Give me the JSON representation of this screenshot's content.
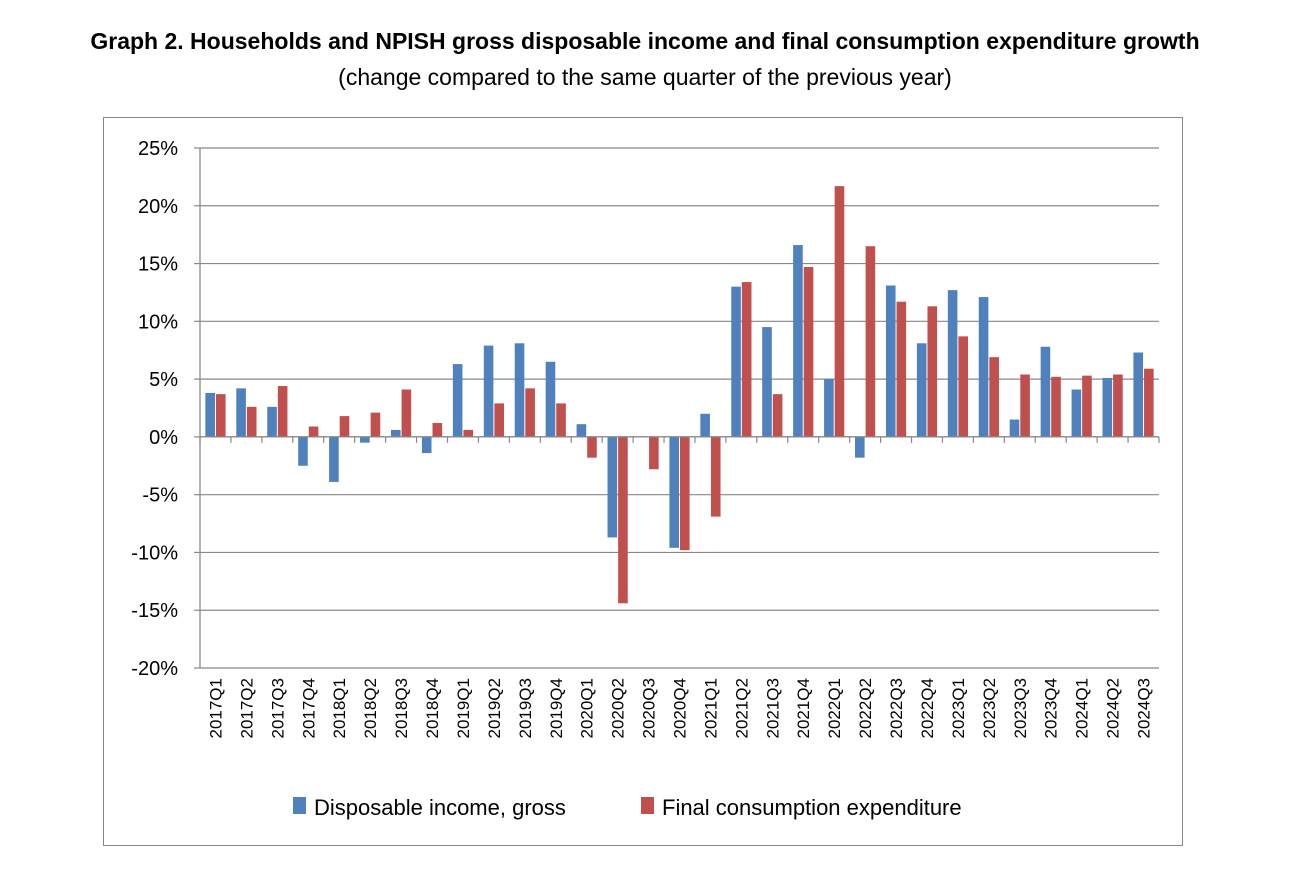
{
  "title": "Graph 2. Households and NPISH gross disposable income and final consumption expenditure growth",
  "subtitle": "(change compared to the same quarter of the previous year)",
  "chart_data": {
    "type": "bar",
    "categories": [
      "2017Q1",
      "2017Q2",
      "2017Q3",
      "2017Q4",
      "2018Q1",
      "2018Q2",
      "2018Q3",
      "2018Q4",
      "2019Q1",
      "2019Q2",
      "2019Q3",
      "2019Q4",
      "2020Q1",
      "2020Q2",
      "2020Q3",
      "2020Q4",
      "2021Q1",
      "2021Q2",
      "2021Q3",
      "2021Q4",
      "2022Q1",
      "2022Q2",
      "2022Q3",
      "2022Q4",
      "2023Q1",
      "2023Q2",
      "2023Q3",
      "2023Q4",
      "2024Q1",
      "2024Q2",
      "2024Q3"
    ],
    "series": [
      {
        "name": "Disposable income, gross",
        "color": "#4f81bd",
        "values": [
          3.8,
          4.2,
          2.6,
          -2.5,
          -3.9,
          -0.5,
          0.6,
          -1.4,
          6.3,
          7.9,
          8.1,
          6.5,
          1.1,
          -8.7,
          0.0,
          -9.6,
          2.0,
          13.0,
          9.5,
          16.6,
          5.0,
          -1.8,
          13.1,
          8.1,
          12.7,
          12.1,
          1.5,
          7.8,
          4.1,
          5.1,
          7.3
        ]
      },
      {
        "name": "Final consumption expenditure",
        "color": "#c0504d",
        "values": [
          3.7,
          2.6,
          4.4,
          0.9,
          1.8,
          2.1,
          4.1,
          1.2,
          0.6,
          2.9,
          4.2,
          2.9,
          -1.8,
          -14.4,
          -2.8,
          -9.8,
          -6.9,
          13.4,
          3.7,
          14.7,
          21.7,
          16.5,
          11.7,
          11.3,
          8.7,
          6.9,
          5.4,
          5.2,
          5.3,
          5.4,
          5.9
        ]
      }
    ],
    "yticks": [
      "25%",
      "20%",
      "15%",
      "10%",
      "5%",
      "0%",
      "-5%",
      "-10%",
      "-15%",
      "-20%"
    ],
    "ylim": [
      -20,
      25
    ],
    "grid": true,
    "legend": "bottom"
  }
}
